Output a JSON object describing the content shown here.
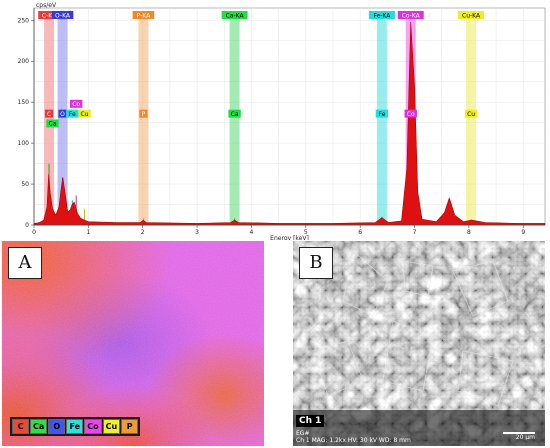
{
  "chart_data": {
    "type": "line",
    "title": "",
    "ylabel": "cps/eV",
    "xlabel": "Energy [keV]",
    "xlim": [
      0,
      9.4
    ],
    "ylim": [
      0,
      265
    ],
    "xticks": [
      0,
      1,
      2,
      3,
      4,
      5,
      6,
      7,
      8,
      9
    ],
    "yticks": [
      0,
      50,
      100,
      150,
      200,
      250
    ],
    "grid": true,
    "series": [
      {
        "name": "spectrum",
        "color": "#dd1111",
        "points": [
          [
            0.0,
            2
          ],
          [
            0.1,
            3
          ],
          [
            0.18,
            6
          ],
          [
            0.24,
            22
          ],
          [
            0.27,
            62
          ],
          [
            0.3,
            38
          ],
          [
            0.34,
            20
          ],
          [
            0.4,
            12
          ],
          [
            0.46,
            22
          ],
          [
            0.5,
            45
          ],
          [
            0.53,
            58
          ],
          [
            0.57,
            40
          ],
          [
            0.62,
            16
          ],
          [
            0.66,
            18
          ],
          [
            0.7,
            25
          ],
          [
            0.74,
            28
          ],
          [
            0.8,
            14
          ],
          [
            0.86,
            8
          ],
          [
            0.93,
            6
          ],
          [
            1.0,
            4
          ],
          [
            1.5,
            3
          ],
          [
            1.96,
            3
          ],
          [
            2.01,
            6
          ],
          [
            2.06,
            3
          ],
          [
            3.0,
            2
          ],
          [
            3.62,
            3
          ],
          [
            3.69,
            6
          ],
          [
            3.76,
            3
          ],
          [
            4.5,
            2
          ],
          [
            5.5,
            2
          ],
          [
            6.28,
            3
          ],
          [
            6.4,
            9
          ],
          [
            6.52,
            3
          ],
          [
            6.76,
            5
          ],
          [
            6.86,
            70
          ],
          [
            6.93,
            248
          ],
          [
            7.0,
            170
          ],
          [
            7.06,
            40
          ],
          [
            7.14,
            7
          ],
          [
            7.4,
            4
          ],
          [
            7.55,
            15
          ],
          [
            7.64,
            33
          ],
          [
            7.74,
            12
          ],
          [
            7.9,
            4
          ],
          [
            8.05,
            6
          ],
          [
            8.3,
            3
          ],
          [
            8.9,
            2
          ],
          [
            9.4,
            2
          ]
        ]
      }
    ],
    "element_lines": [
      {
        "label": "C",
        "energy": 0.277,
        "height": 75,
        "color": "#22aa22"
      },
      {
        "label": "O",
        "energy": 0.525,
        "height": 58,
        "color": "#7a2a7a"
      },
      {
        "label": "Fe",
        "energy": 0.705,
        "height": 30,
        "color": "#339999"
      },
      {
        "label": "Co",
        "energy": 0.776,
        "height": 36,
        "color": "#aa33aa"
      },
      {
        "label": "Cu",
        "energy": 0.93,
        "height": 20,
        "color": "#bbbb22"
      },
      {
        "label": "P",
        "energy": 2.013,
        "height": 8,
        "color": "#dd8844"
      },
      {
        "label": "Ca",
        "energy": 3.69,
        "height": 8,
        "color": "#33aa33"
      },
      {
        "label": "Fe",
        "energy": 6.4,
        "height": 10,
        "color": "#339999"
      },
      {
        "label": "Co",
        "energy": 6.93,
        "height": 12,
        "color": "#aa33aa"
      },
      {
        "label": "Cu",
        "energy": 8.04,
        "height": 7,
        "color": "#bbbb22"
      }
    ],
    "bands_top": [
      {
        "label": "C-KA",
        "energy": 0.277,
        "color": "#f08080",
        "text_color": "#ffffff",
        "box_color": "#e83a3a"
      },
      {
        "label": "O-KA",
        "energy": 0.525,
        "color": "#8888ee",
        "text_color": "#ffffff",
        "box_color": "#3a3ad8"
      },
      {
        "label": "P-KA",
        "energy": 2.013,
        "color": "#f5b070",
        "text_color": "#ffffff",
        "box_color": "#ee8a2a"
      },
      {
        "label": "Ca-KA",
        "energy": 3.69,
        "color": "#55dd77",
        "text_color": "#000000",
        "box_color": "#22dd44"
      },
      {
        "label": "Fe-KA",
        "energy": 6.4,
        "color": "#44dddd",
        "text_color": "#000000",
        "box_color": "#22dddd"
      },
      {
        "label": "Co-KA",
        "energy": 6.93,
        "color": "#ee55ee",
        "text_color": "#ffffff",
        "box_color": "#dd33dd"
      },
      {
        "label": "Cu-KA",
        "energy": 8.04,
        "color": "#eeee55",
        "text_color": "#000000",
        "box_color": "#eeee22"
      }
    ],
    "markers_mid": [
      {
        "label": "C",
        "energy": 0.277,
        "y_level": 136,
        "box_color": "#e83a3a",
        "text_color": "#ffffff"
      },
      {
        "label": "Ca",
        "energy": 0.34,
        "y_level": 124,
        "box_color": "#22dd44",
        "text_color": "#000000"
      },
      {
        "label": "O",
        "energy": 0.525,
        "y_level": 136,
        "box_color": "#3a3ad8",
        "text_color": "#ffffff"
      },
      {
        "label": "Fe",
        "energy": 0.705,
        "y_level": 136,
        "box_color": "#22dddd",
        "text_color": "#000000"
      },
      {
        "label": "Co",
        "energy": 0.776,
        "y_level": 148,
        "box_color": "#dd33dd",
        "text_color": "#ffffff"
      },
      {
        "label": "Cu",
        "energy": 0.93,
        "y_level": 136,
        "box_color": "#eeee22",
        "text_color": "#000000"
      },
      {
        "label": "P",
        "energy": 2.013,
        "y_level": 136,
        "box_color": "#ee8a2a",
        "text_color": "#ffffff"
      },
      {
        "label": "Ca",
        "energy": 3.69,
        "y_level": 136,
        "box_color": "#22dd44",
        "text_color": "#000000"
      },
      {
        "label": "Fe",
        "energy": 6.4,
        "y_level": 136,
        "box_color": "#22dddd",
        "text_color": "#000000"
      },
      {
        "label": "Co",
        "energy": 6.93,
        "y_level": 136,
        "box_color": "#dd33dd",
        "text_color": "#ffffff"
      },
      {
        "label": "Cu",
        "energy": 8.04,
        "y_level": 136,
        "box_color": "#eeee22",
        "text_color": "#000000"
      }
    ]
  },
  "panel_a": {
    "letter": "A",
    "legend": [
      {
        "label": "C",
        "color": "#e84a3a"
      },
      {
        "label": "Ca",
        "color": "#33dd44"
      },
      {
        "label": "O",
        "color": "#4455ee"
      },
      {
        "label": "Fe",
        "color": "#33dddd"
      },
      {
        "label": "Co",
        "color": "#ee44ee"
      },
      {
        "label": "Cu",
        "color": "#eeee33"
      },
      {
        "label": "P",
        "color": "#ee9a3a"
      }
    ]
  },
  "panel_b": {
    "letter": "B",
    "channel": "Ch 1",
    "info_line1": "EG#",
    "info_line2": "Ch 1     MAG: 1.2kx     HV: 30 kV     WD: 8 mm",
    "scale_label": "20 µm"
  }
}
